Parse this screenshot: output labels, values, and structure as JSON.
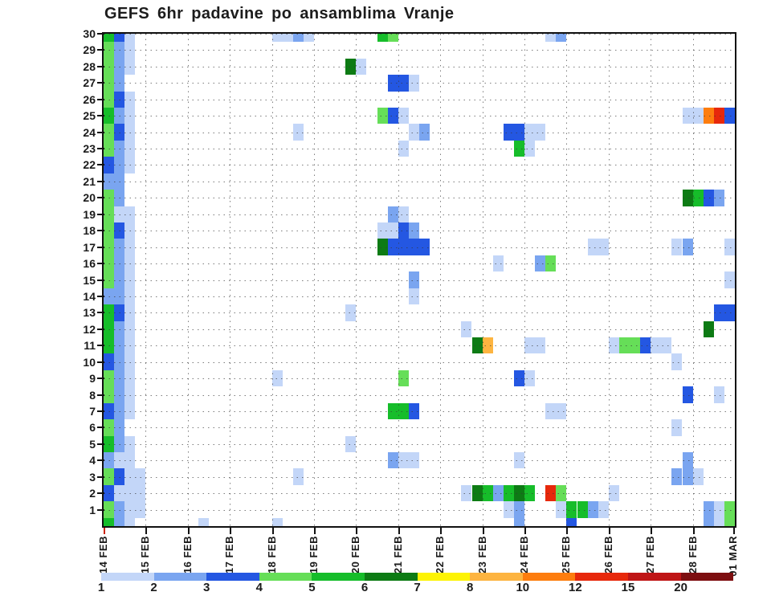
{
  "title": "GEFS 6hr padavine po ansamblima Vranje",
  "start_marker_color": "#cc2200",
  "chart_data": {
    "type": "heatmap",
    "title": "GEFS 6hr padavine po ansamblima Vranje",
    "xlabel": "",
    "ylabel": "",
    "x_start": "14 FEB 00h",
    "x_step_hours": 6,
    "x_steps": 60,
    "x_tick_labels": [
      "14 FEB",
      "15 FEB",
      "16 FEB",
      "17 FEB",
      "18 FEB",
      "19 FEB",
      "20 FEB",
      "21 FEB",
      "22 FEB",
      "23 FEB",
      "24 FEB",
      "25 FEB",
      "26 FEB",
      "27 FEB",
      "28 FEB",
      "01 MAR"
    ],
    "y_tick_labels": [
      1,
      2,
      3,
      4,
      5,
      6,
      7,
      8,
      9,
      10,
      11,
      12,
      13,
      14,
      15,
      16,
      17,
      18,
      19,
      20,
      21,
      22,
      23,
      24,
      25,
      26,
      27,
      28,
      29,
      30
    ],
    "y_range": [
      0,
      30
    ],
    "grid": "dotted, every member row and every day",
    "legend_position": "bottom colorbar",
    "legend_values_mm": [
      1,
      2,
      3,
      4,
      5,
      6,
      7,
      8,
      10,
      12,
      15,
      20
    ],
    "palette": [
      "#c3d6f8",
      "#7aa5f0",
      "#2457e2",
      "#66de58",
      "#16bd2a",
      "#0d7b14",
      "#fdf304",
      "#fdb440",
      "#fd7d0e",
      "#e7280b",
      "#bf1516",
      "#7d0e10"
    ],
    "cells_format": "[member_row, time_step, color_level(1-12)]",
    "cells": [
      [
        30,
        0,
        5
      ],
      [
        30,
        1,
        3
      ],
      [
        30,
        2,
        1
      ],
      [
        29,
        0,
        4
      ],
      [
        29,
        1,
        2
      ],
      [
        29,
        2,
        1
      ],
      [
        28,
        0,
        4
      ],
      [
        28,
        1,
        2
      ],
      [
        28,
        2,
        1
      ],
      [
        27,
        0,
        4
      ],
      [
        27,
        1,
        2
      ],
      [
        26,
        0,
        4
      ],
      [
        26,
        1,
        3
      ],
      [
        26,
        2,
        1
      ],
      [
        25,
        0,
        5
      ],
      [
        25,
        1,
        2
      ],
      [
        25,
        2,
        1
      ],
      [
        24,
        0,
        4
      ],
      [
        24,
        1,
        3
      ],
      [
        24,
        2,
        1
      ],
      [
        23,
        0,
        4
      ],
      [
        23,
        1,
        2
      ],
      [
        23,
        2,
        1
      ],
      [
        22,
        0,
        3
      ],
      [
        22,
        1,
        2
      ],
      [
        22,
        2,
        1
      ],
      [
        21,
        0,
        2
      ],
      [
        21,
        1,
        2
      ],
      [
        20,
        0,
        4
      ],
      [
        20,
        1,
        2
      ],
      [
        19,
        0,
        4
      ],
      [
        19,
        1,
        1
      ],
      [
        19,
        2,
        1
      ],
      [
        18,
        0,
        4
      ],
      [
        18,
        1,
        3
      ],
      [
        18,
        2,
        1
      ],
      [
        17,
        0,
        4
      ],
      [
        17,
        1,
        2
      ],
      [
        17,
        2,
        1
      ],
      [
        16,
        0,
        4
      ],
      [
        16,
        1,
        2
      ],
      [
        16,
        2,
        1
      ],
      [
        15,
        0,
        4
      ],
      [
        15,
        1,
        2
      ],
      [
        15,
        2,
        1
      ],
      [
        14,
        0,
        2
      ],
      [
        14,
        1,
        2
      ],
      [
        14,
        2,
        1
      ],
      [
        13,
        0,
        5
      ],
      [
        13,
        1,
        3
      ],
      [
        13,
        2,
        1
      ],
      [
        12,
        0,
        5
      ],
      [
        12,
        1,
        2
      ],
      [
        12,
        2,
        1
      ],
      [
        11,
        0,
        5
      ],
      [
        11,
        1,
        2
      ],
      [
        11,
        2,
        1
      ],
      [
        10,
        0,
        3
      ],
      [
        10,
        1,
        2
      ],
      [
        10,
        2,
        1
      ],
      [
        9,
        0,
        4
      ],
      [
        9,
        1,
        2
      ],
      [
        9,
        2,
        1
      ],
      [
        8,
        0,
        4
      ],
      [
        8,
        1,
        2
      ],
      [
        8,
        2,
        1
      ],
      [
        7,
        0,
        3
      ],
      [
        7,
        1,
        2
      ],
      [
        7,
        2,
        1
      ],
      [
        6,
        0,
        4
      ],
      [
        6,
        1,
        2
      ],
      [
        5,
        0,
        5
      ],
      [
        5,
        1,
        2
      ],
      [
        5,
        2,
        1
      ],
      [
        4,
        0,
        2
      ],
      [
        4,
        1,
        1
      ],
      [
        4,
        2,
        1
      ],
      [
        3,
        0,
        4
      ],
      [
        3,
        1,
        3
      ],
      [
        3,
        2,
        1
      ],
      [
        3,
        3,
        1
      ],
      [
        2,
        0,
        3
      ],
      [
        2,
        1,
        1
      ],
      [
        2,
        2,
        1
      ],
      [
        2,
        3,
        1
      ],
      [
        1,
        0,
        4
      ],
      [
        1,
        1,
        2
      ],
      [
        1,
        2,
        1
      ],
      [
        1,
        3,
        1
      ],
      [
        0,
        0,
        5
      ],
      [
        0,
        1,
        2
      ],
      [
        0,
        2,
        1
      ],
      [
        30,
        16,
        1
      ],
      [
        30,
        17,
        1
      ],
      [
        30,
        18,
        2
      ],
      [
        30,
        19,
        1
      ],
      [
        30,
        26,
        5
      ],
      [
        30,
        27,
        4
      ],
      [
        30,
        42,
        1
      ],
      [
        30,
        43,
        2
      ],
      [
        28,
        23,
        6
      ],
      [
        28,
        24,
        1
      ],
      [
        27,
        27,
        3
      ],
      [
        27,
        28,
        3
      ],
      [
        27,
        29,
        1
      ],
      [
        25,
        26,
        4
      ],
      [
        25,
        27,
        3
      ],
      [
        25,
        28,
        1
      ],
      [
        25,
        55,
        1
      ],
      [
        25,
        56,
        1
      ],
      [
        25,
        57,
        9
      ],
      [
        25,
        58,
        10
      ],
      [
        25,
        59,
        3
      ],
      [
        24,
        18,
        1
      ],
      [
        24,
        29,
        1
      ],
      [
        24,
        30,
        2
      ],
      [
        24,
        38,
        3
      ],
      [
        24,
        39,
        3
      ],
      [
        24,
        40,
        1
      ],
      [
        24,
        41,
        1
      ],
      [
        23,
        28,
        1
      ],
      [
        23,
        39,
        5
      ],
      [
        23,
        40,
        1
      ],
      [
        20,
        55,
        6
      ],
      [
        20,
        56,
        5
      ],
      [
        20,
        57,
        3
      ],
      [
        20,
        58,
        2
      ],
      [
        19,
        27,
        2
      ],
      [
        19,
        28,
        1
      ],
      [
        18,
        26,
        1
      ],
      [
        18,
        27,
        1
      ],
      [
        18,
        28,
        3
      ],
      [
        18,
        29,
        2
      ],
      [
        17,
        26,
        6
      ],
      [
        17,
        27,
        3
      ],
      [
        17,
        28,
        3
      ],
      [
        17,
        29,
        3
      ],
      [
        17,
        30,
        3
      ],
      [
        17,
        46,
        1
      ],
      [
        17,
        47,
        1
      ],
      [
        17,
        54,
        1
      ],
      [
        17,
        55,
        2
      ],
      [
        17,
        59,
        1
      ],
      [
        16,
        37,
        1
      ],
      [
        16,
        41,
        2
      ],
      [
        16,
        42,
        4
      ],
      [
        15,
        29,
        2
      ],
      [
        15,
        59,
        1
      ],
      [
        14,
        29,
        1
      ],
      [
        13,
        23,
        1
      ],
      [
        13,
        58,
        3
      ],
      [
        13,
        59,
        3
      ],
      [
        12,
        34,
        1
      ],
      [
        12,
        57,
        6
      ],
      [
        11,
        35,
        6
      ],
      [
        11,
        36,
        8
      ],
      [
        11,
        40,
        1
      ],
      [
        11,
        41,
        1
      ],
      [
        11,
        48,
        1
      ],
      [
        11,
        49,
        4
      ],
      [
        11,
        50,
        4
      ],
      [
        11,
        51,
        3
      ],
      [
        11,
        52,
        1
      ],
      [
        11,
        53,
        1
      ],
      [
        10,
        54,
        1
      ],
      [
        9,
        16,
        1
      ],
      [
        9,
        28,
        4
      ],
      [
        9,
        39,
        3
      ],
      [
        9,
        40,
        1
      ],
      [
        8,
        55,
        3
      ],
      [
        8,
        58,
        1
      ],
      [
        7,
        27,
        5
      ],
      [
        7,
        28,
        5
      ],
      [
        7,
        29,
        3
      ],
      [
        7,
        42,
        1
      ],
      [
        7,
        43,
        1
      ],
      [
        6,
        54,
        1
      ],
      [
        5,
        23,
        1
      ],
      [
        4,
        27,
        2
      ],
      [
        4,
        28,
        1
      ],
      [
        4,
        29,
        1
      ],
      [
        4,
        39,
        1
      ],
      [
        4,
        55,
        2
      ],
      [
        3,
        18,
        1
      ],
      [
        3,
        54,
        2
      ],
      [
        3,
        55,
        2
      ],
      [
        3,
        56,
        1
      ],
      [
        2,
        34,
        1
      ],
      [
        2,
        35,
        6
      ],
      [
        2,
        36,
        5
      ],
      [
        2,
        37,
        2
      ],
      [
        2,
        38,
        5
      ],
      [
        2,
        39,
        6
      ],
      [
        2,
        40,
        5
      ],
      [
        2,
        42,
        10
      ],
      [
        2,
        43,
        4
      ],
      [
        2,
        48,
        1
      ],
      [
        1,
        38,
        1
      ],
      [
        1,
        39,
        2
      ],
      [
        1,
        43,
        1
      ],
      [
        1,
        44,
        5
      ],
      [
        1,
        45,
        5
      ],
      [
        1,
        46,
        2
      ],
      [
        1,
        47,
        1
      ],
      [
        1,
        57,
        2
      ],
      [
        1,
        58,
        1
      ],
      [
        1,
        59,
        4
      ],
      [
        0,
        9,
        1
      ],
      [
        0,
        16,
        1
      ],
      [
        0,
        39,
        2
      ],
      [
        0,
        44,
        3
      ],
      [
        0,
        57,
        2
      ],
      [
        0,
        58,
        1
      ],
      [
        0,
        59,
        4
      ]
    ]
  },
  "colorbar": {
    "labels": [
      "1",
      "2",
      "3",
      "4",
      "5",
      "6",
      "7",
      "8",
      "10",
      "12",
      "15",
      "20"
    ]
  }
}
